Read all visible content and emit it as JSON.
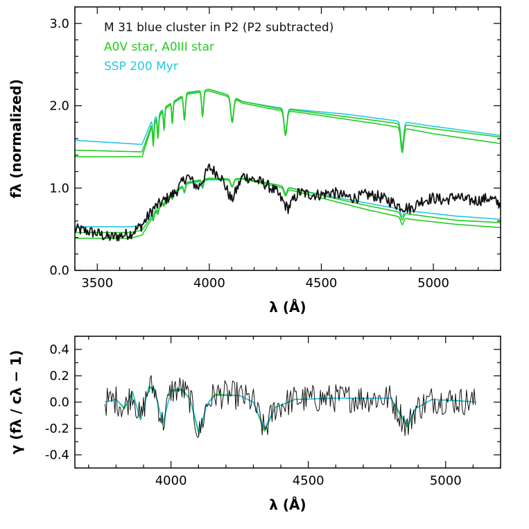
{
  "chart_data": [
    {
      "type": "line",
      "panel": "top",
      "xlabel": "λ (Å)",
      "ylabel": "fλ (normalized)",
      "xlim": [
        3400,
        5300
      ],
      "ylim": [
        0.0,
        3.2
      ],
      "xticks": [
        3500,
        4000,
        4500,
        5000
      ],
      "yticks": [
        0.0,
        1.0,
        2.0,
        3.0
      ],
      "xtick_labels": [
        "3500",
        "4000",
        "4500",
        "5000"
      ],
      "ytick_labels": [
        "0.0",
        "1.0",
        "2.0",
        "3.0"
      ],
      "legend": [
        {
          "text": "M 31 blue cluster in P2 (P2 subtracted)",
          "color": "#111111"
        },
        {
          "text": "A0V star, A0III star",
          "color": "#22cc22"
        },
        {
          "text": "SSP 200 Myr",
          "color": "#22c8e6"
        }
      ],
      "balmer_lines": [
        3750,
        3771,
        3798,
        3835,
        3889,
        3970,
        4102,
        4340,
        4861
      ],
      "series": [
        {
          "name": "SSP 200 Myr (offset)",
          "color": "#22c8e6",
          "x": [
            3400,
            3700,
            3740,
            3800,
            3900,
            4000,
            4100,
            4150,
            4300,
            4400,
            4600,
            4800,
            5000,
            5300
          ],
          "y": [
            1.58,
            1.53,
            1.8,
            1.98,
            2.15,
            2.18,
            2.1,
            2.05,
            1.98,
            1.95,
            1.9,
            1.83,
            1.75,
            1.64
          ]
        },
        {
          "name": "A0V star (offset)",
          "color": "#22cc22",
          "x": [
            3400,
            3700,
            3740,
            3800,
            3900,
            4000,
            4100,
            4150,
            4300,
            4400,
            4600,
            4800,
            5000,
            5300
          ],
          "y": [
            1.46,
            1.44,
            1.75,
            1.98,
            2.16,
            2.2,
            2.12,
            2.05,
            1.97,
            1.94,
            1.87,
            1.8,
            1.72,
            1.62
          ]
        },
        {
          "name": "A0III star (offset)",
          "color": "#22cc22",
          "x": [
            3400,
            3700,
            3740,
            3800,
            3900,
            4000,
            4100,
            4150,
            4300,
            4400,
            4600,
            4800,
            5000,
            5300
          ],
          "y": [
            1.38,
            1.38,
            1.72,
            1.96,
            2.14,
            2.18,
            2.1,
            2.03,
            1.95,
            1.92,
            1.84,
            1.76,
            1.66,
            1.54
          ]
        },
        {
          "name": "SSP 200 Myr",
          "color": "#22c8e6",
          "x": [
            3400,
            3650,
            3700,
            3750,
            3800,
            3900,
            4000,
            4100,
            4150,
            4300,
            4500,
            4700,
            4900,
            5100,
            5300
          ],
          "y": [
            0.53,
            0.53,
            0.55,
            0.7,
            0.85,
            1.05,
            1.1,
            1.1,
            1.12,
            1.04,
            0.92,
            0.82,
            0.72,
            0.66,
            0.62
          ]
        },
        {
          "name": "A0V star",
          "color": "#22cc22",
          "x": [
            3400,
            3650,
            3700,
            3750,
            3800,
            3900,
            4000,
            4100,
            4150,
            4300,
            4500,
            4700,
            4900,
            5100,
            5300
          ],
          "y": [
            0.46,
            0.46,
            0.49,
            0.68,
            0.86,
            1.07,
            1.12,
            1.11,
            1.12,
            1.04,
            0.91,
            0.79,
            0.68,
            0.61,
            0.58
          ]
        },
        {
          "name": "A0III star",
          "color": "#22cc22",
          "x": [
            3400,
            3650,
            3700,
            3750,
            3800,
            3900,
            4000,
            4100,
            4150,
            4300,
            4500,
            4700,
            4900,
            5100,
            5300
          ],
          "y": [
            0.39,
            0.39,
            0.43,
            0.66,
            0.84,
            1.06,
            1.11,
            1.1,
            1.11,
            1.02,
            0.88,
            0.74,
            0.62,
            0.56,
            0.52
          ]
        },
        {
          "name": "M 31 blue cluster in P2 (P2 subtracted)",
          "color": "#111111",
          "x": [
            3400,
            3450,
            3500,
            3550,
            3600,
            3650,
            3700,
            3750,
            3800,
            3850,
            3900,
            3950,
            4000,
            4050,
            4100,
            4150,
            4200,
            4250,
            4300,
            4350,
            4400,
            4450,
            4500,
            4550,
            4600,
            4650,
            4700,
            4750,
            4800,
            4850,
            4900,
            4950,
            5000,
            5050,
            5100,
            5150,
            5200,
            5250,
            5300
          ],
          "y": [
            0.5,
            0.48,
            0.45,
            0.4,
            0.42,
            0.45,
            0.55,
            0.75,
            0.85,
            0.95,
            1.15,
            1.0,
            1.25,
            1.15,
            0.85,
            1.15,
            1.1,
            1.05,
            0.95,
            0.75,
            0.95,
            0.92,
            0.92,
            0.95,
            0.9,
            0.88,
            0.92,
            0.9,
            0.85,
            0.78,
            0.75,
            0.85,
            0.88,
            0.85,
            0.9,
            0.85,
            0.85,
            0.88,
            0.8
          ],
          "noise": 0.07
        }
      ]
    },
    {
      "type": "line",
      "panel": "bottom",
      "xlabel": "λ (Å)",
      "ylabel": "γ (fλ / cλ − 1)",
      "xlim": [
        3650,
        5200
      ],
      "ylim": [
        -0.5,
        0.5
      ],
      "xticks": [
        4000,
        4500,
        5000
      ],
      "yticks": [
        -0.4,
        -0.2,
        0.0,
        0.2,
        0.4
      ],
      "xtick_labels": [
        "4000",
        "4500",
        "5000"
      ],
      "ytick_labels": [
        "-0.4",
        "-0.2",
        "0.0",
        "0.2",
        "0.4"
      ],
      "series": [
        {
          "name": "A0V star",
          "color": "#22cc22",
          "x": [
            3760,
            3800,
            3830,
            3860,
            3889,
            3920,
            3940,
            3970,
            4000,
            4040,
            4070,
            4102,
            4130,
            4160,
            4250,
            4300,
            4340,
            4380,
            4450,
            4600,
            4800,
            4830,
            4861,
            4890,
            4950,
            5050,
            5110
          ],
          "y": [
            0.0,
            0.02,
            -0.05,
            0.08,
            -0.14,
            0.12,
            0.1,
            -0.17,
            0.09,
            0.1,
            0.02,
            -0.25,
            -0.02,
            0.06,
            0.05,
            0.0,
            -0.22,
            -0.04,
            0.02,
            0.03,
            0.03,
            -0.08,
            -0.19,
            -0.05,
            0.02,
            0.01,
            0.0
          ]
        },
        {
          "name": "SSP 200 Myr",
          "color": "#22c8e6",
          "x": [
            3760,
            3800,
            3830,
            3860,
            3889,
            3920,
            3940,
            3970,
            4000,
            4040,
            4070,
            4102,
            4130,
            4160,
            4250,
            4300,
            4340,
            4380,
            4450,
            4600,
            4800,
            4830,
            4861,
            4890,
            4950,
            5050,
            5110
          ],
          "y": [
            0.0,
            0.02,
            -0.04,
            0.07,
            -0.13,
            0.11,
            0.09,
            -0.16,
            0.08,
            0.09,
            0.02,
            -0.23,
            -0.02,
            0.05,
            0.05,
            0.0,
            -0.2,
            -0.04,
            0.02,
            0.03,
            0.03,
            -0.07,
            -0.17,
            -0.05,
            0.02,
            0.01,
            0.0
          ]
        },
        {
          "name": "M 31 blue cluster",
          "color": "#111111",
          "x": [
            3760,
            3800,
            3830,
            3860,
            3889,
            3920,
            3940,
            3970,
            4000,
            4040,
            4070,
            4102,
            4130,
            4160,
            4250,
            4300,
            4340,
            4380,
            4450,
            4600,
            4800,
            4830,
            4861,
            4890,
            4950,
            5050,
            5110
          ],
          "y": [
            0.0,
            0.02,
            -0.05,
            0.08,
            -0.14,
            0.12,
            0.1,
            -0.17,
            0.09,
            0.1,
            0.02,
            -0.25,
            -0.02,
            0.06,
            0.05,
            0.0,
            -0.22,
            -0.04,
            0.02,
            0.03,
            0.03,
            -0.08,
            -0.19,
            -0.05,
            0.02,
            0.01,
            0.0
          ],
          "noise": 0.11
        }
      ]
    }
  ]
}
